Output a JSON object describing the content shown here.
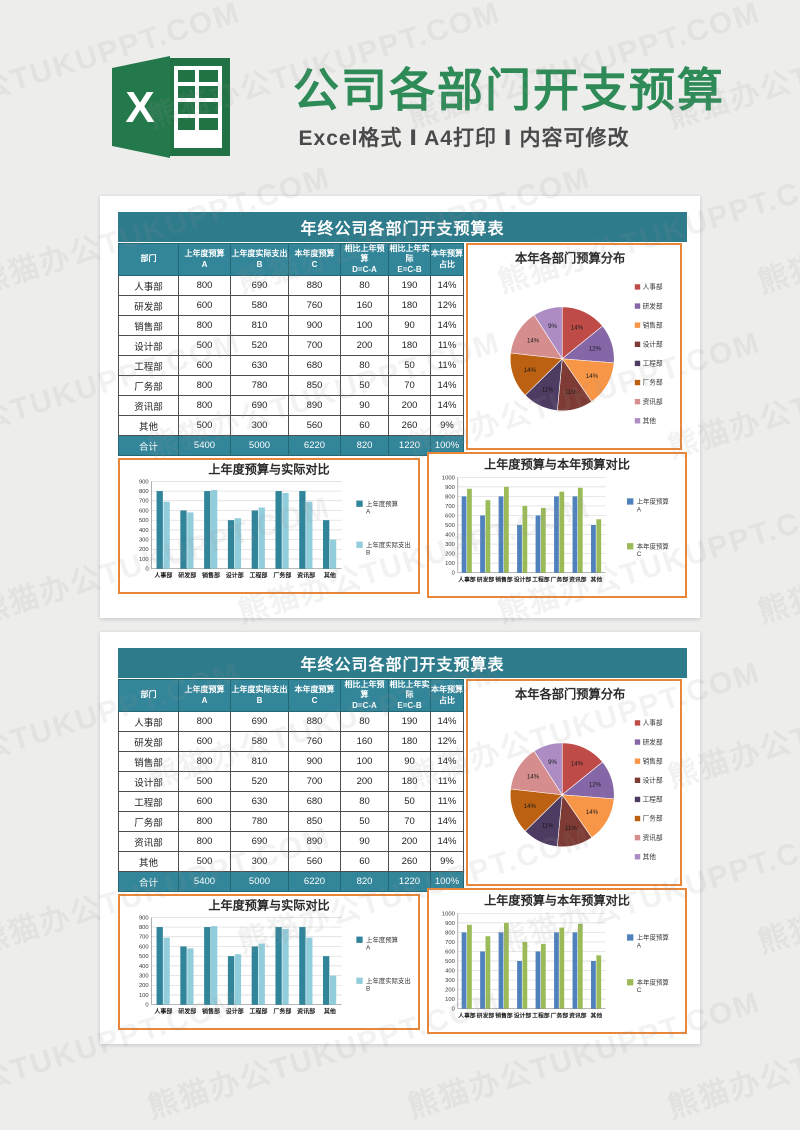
{
  "header": {
    "title": "公司各部门开支预算",
    "subtitle": "Excel格式 Ⅰ A4打印 Ⅰ 内容可修改",
    "logo_letter": "X",
    "title_green": "#2e8b57",
    "excel_green": "#217346"
  },
  "watermark": {
    "text": "熊猫办公TUKUPPT.COM"
  },
  "sheet": {
    "banner_title": "年终公司各部门开支预算表",
    "table": {
      "headers": [
        {
          "line1": "部门",
          "line2": ""
        },
        {
          "line1": "上年度预算",
          "line2": "A"
        },
        {
          "line1": "上年度实际支出",
          "line2": "B"
        },
        {
          "line1": "本年度预算",
          "line2": "C"
        },
        {
          "line1": "相比上年预算",
          "line2": "D=C-A"
        },
        {
          "line1": "相比上年实际",
          "line2": "E=C-B"
        },
        {
          "line1": "本年预算",
          "line2": "占比"
        }
      ],
      "rows": [
        [
          "人事部",
          "800",
          "690",
          "880",
          "80",
          "190",
          "14%"
        ],
        [
          "研发部",
          "600",
          "580",
          "760",
          "160",
          "180",
          "12%"
        ],
        [
          "销售部",
          "800",
          "810",
          "900",
          "100",
          "90",
          "14%"
        ],
        [
          "设计部",
          "500",
          "520",
          "700",
          "200",
          "180",
          "11%"
        ],
        [
          "工程部",
          "600",
          "630",
          "680",
          "80",
          "50",
          "11%"
        ],
        [
          "厂务部",
          "800",
          "780",
          "850",
          "50",
          "70",
          "14%"
        ],
        [
          "资讯部",
          "800",
          "690",
          "890",
          "90",
          "200",
          "14%"
        ],
        [
          "其他",
          "500",
          "300",
          "560",
          "60",
          "260",
          "9%"
        ]
      ],
      "total": [
        "合计",
        "5400",
        "5000",
        "6220",
        "820",
        "1220",
        "100%"
      ]
    }
  },
  "chart_data": [
    {
      "id": "pie",
      "type": "pie",
      "title": "本年各部门预算分布",
      "categories": [
        "人事部",
        "研发部",
        "销售部",
        "设计部",
        "工程部",
        "厂务部",
        "资讯部",
        "其他"
      ],
      "values": [
        14,
        12,
        14,
        11,
        11,
        14,
        14,
        9
      ],
      "unit": "%",
      "colors": [
        "#be4b48",
        "#8566a7",
        "#f79646",
        "#7e3a34",
        "#4d3b62",
        "#bc6011",
        "#d58e8d",
        "#ac8cc3"
      ],
      "legend_position": "right",
      "start_angle_deg": -90,
      "direction": "clockwise"
    },
    {
      "id": "bar1",
      "type": "bar",
      "title": "上年度预算与实际对比",
      "categories": [
        "人事部",
        "研发部",
        "销售部",
        "设计部",
        "工程部",
        "厂务部",
        "资讯部",
        "其他"
      ],
      "series": [
        {
          "name": "上年度预算 A",
          "legend_lines": [
            "上年度预算",
            "A"
          ],
          "color": "#31859b",
          "values": [
            800,
            600,
            800,
            500,
            600,
            800,
            800,
            500
          ]
        },
        {
          "name": "上年度实际支出 B",
          "legend_lines": [
            "上年度实际支出",
            "B"
          ],
          "color": "#92cddc",
          "values": [
            690,
            580,
            810,
            520,
            630,
            780,
            690,
            300
          ]
        }
      ],
      "ylim": [
        0,
        900
      ],
      "ytick": 100,
      "grid": true,
      "legend_position": "right"
    },
    {
      "id": "bar2",
      "type": "bar",
      "title": "上年度预算与本年预算对比",
      "categories": [
        "人事部",
        "研发部",
        "销售部",
        "设计部",
        "工程部",
        "厂务部",
        "资讯部",
        "其他"
      ],
      "series": [
        {
          "name": "上年度预算 A",
          "legend_lines": [
            "上年度预算",
            "A"
          ],
          "color": "#4f81bd",
          "values": [
            800,
            600,
            800,
            500,
            600,
            800,
            800,
            500
          ]
        },
        {
          "name": "本年度预算 C",
          "legend_lines": [
            "本年度预算",
            "C"
          ],
          "color": "#9bbb59",
          "values": [
            880,
            760,
            900,
            700,
            680,
            850,
            890,
            560
          ]
        }
      ],
      "ylim": [
        0,
        1000
      ],
      "ytick": 100,
      "grid": true,
      "legend_position": "right"
    }
  ],
  "colors": {
    "banner_teal": "#2e7b8c",
    "table_header_teal": "#33869a",
    "orange_border": "#e8863a",
    "page_bg": "#ffffff",
    "canvas_bg": "#ededec"
  }
}
